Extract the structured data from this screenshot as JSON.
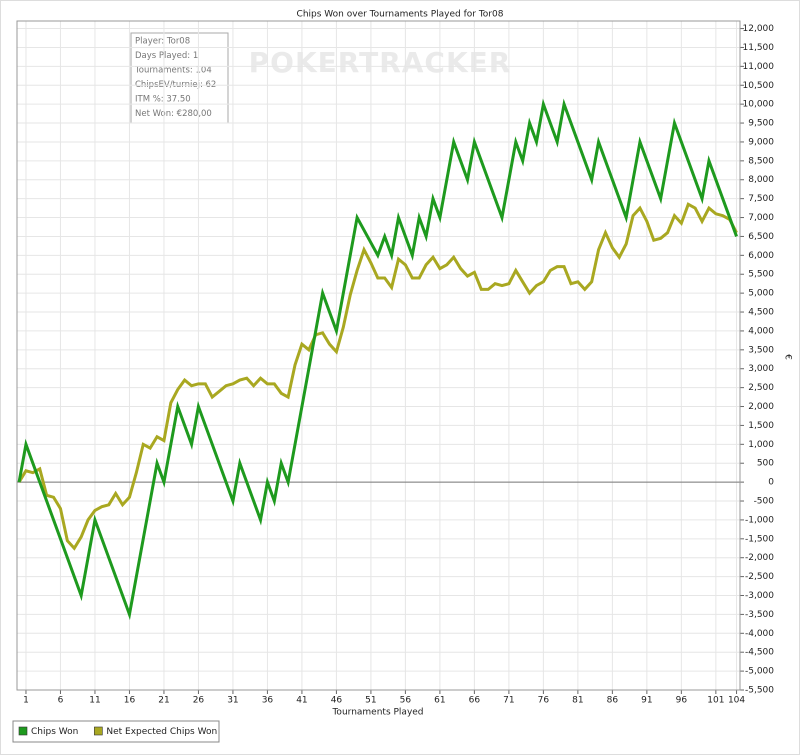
{
  "chart_data": {
    "type": "line",
    "title": "Chips Won over Tournaments Played for Tor08",
    "x_label": "Tournaments Played",
    "y_label": "€",
    "watermark": "POKERTRACKER",
    "tooltip": [
      "Player: Tor08",
      "Days Played: 1",
      "Tournaments: 104",
      "ChipsEV/turniej: 62",
      "ITM %: 37.50",
      "Net Won: €280,00"
    ],
    "xlim": [
      -0.3,
      104.5
    ],
    "xticks": [
      1,
      6,
      11,
      16,
      21,
      26,
      31,
      36,
      41,
      46,
      51,
      56,
      61,
      66,
      71,
      76,
      81,
      86,
      91,
      96,
      101,
      104
    ],
    "ylim": [
      -5500,
      12200
    ],
    "yticks": [
      {
        "value": -5500,
        "label": "-5,500"
      },
      {
        "value": -5000,
        "label": "-5,000"
      },
      {
        "value": -4500,
        "label": "-4,500"
      },
      {
        "value": -4000,
        "label": "-4,000"
      },
      {
        "value": -3500,
        "label": "-3,500"
      },
      {
        "value": -3000,
        "label": "-3,000"
      },
      {
        "value": -2500,
        "label": "-2,500"
      },
      {
        "value": -2000,
        "label": "-2,000"
      },
      {
        "value": -1500,
        "label": "-1,500"
      },
      {
        "value": -1000,
        "label": "-1,000"
      },
      -500,
      0,
      500,
      {
        "value": 1000,
        "label": "1,000"
      },
      {
        "value": 1500,
        "label": "1,500"
      },
      {
        "value": 2000,
        "label": "2,000"
      },
      {
        "value": 2500,
        "label": "2,500"
      },
      {
        "value": 3000,
        "label": "3,000"
      },
      {
        "value": 3500,
        "label": "3,500"
      },
      {
        "value": 4000,
        "label": "4,000"
      },
      {
        "value": 4500,
        "label": "4,500"
      },
      {
        "value": 5000,
        "label": "5,000"
      },
      {
        "value": 5500,
        "label": "5,500"
      },
      {
        "value": 6000,
        "label": "6,000"
      },
      {
        "value": 6500,
        "label": "6,500"
      },
      {
        "value": 7000,
        "label": "7,000"
      },
      {
        "value": 7500,
        "label": "7,500"
      },
      {
        "value": 8000,
        "label": "8,000"
      },
      {
        "value": 8500,
        "label": "8,500"
      },
      {
        "value": 9000,
        "label": "9,000"
      },
      {
        "value": 9500,
        "label": "9,500"
      },
      {
        "value": 10000,
        "label": "10,000"
      },
      {
        "value": 10500,
        "label": "10,500"
      },
      {
        "value": 11000,
        "label": "11,000"
      },
      {
        "value": 11500,
        "label": "11,500"
      },
      {
        "value": 12000,
        "label": "12,000"
      }
    ],
    "grid": true,
    "series": [
      {
        "name": "Chips Won",
        "color": "#1e9a1e",
        "x": [
          0,
          1,
          9,
          11,
          16,
          20,
          21,
          23,
          25,
          26,
          31,
          32,
          35,
          36,
          37,
          38,
          39,
          44,
          46,
          49,
          52,
          53,
          54,
          55,
          57,
          58,
          59,
          60,
          61,
          63,
          65,
          66,
          70,
          72,
          73,
          74,
          75,
          76,
          78,
          79,
          83,
          84,
          88,
          90,
          93,
          95,
          99,
          100,
          104
        ],
        "values": [
          0,
          1000,
          -3000,
          -1000,
          -3500,
          500,
          0,
          2000,
          1000,
          2000,
          -500,
          500,
          -1000,
          0,
          -500,
          500,
          0,
          5000,
          4000,
          7000,
          6000,
          6500,
          6000,
          7000,
          6000,
          7000,
          6500,
          7500,
          7000,
          9000,
          8000,
          9000,
          7000,
          9000,
          8500,
          9500,
          9000,
          10000,
          9000,
          10000,
          8000,
          9000,
          7000,
          9000,
          7500,
          9500,
          7500,
          8500,
          6500
        ]
      },
      {
        "name": "Net Expected Chips Won",
        "color": "#a9a821",
        "x": [
          0,
          1,
          2,
          3,
          4,
          5,
          6,
          7,
          8,
          9,
          10,
          11,
          12,
          13,
          14,
          15,
          16,
          17,
          18,
          19,
          20,
          21,
          22,
          23,
          24,
          25,
          26,
          27,
          28,
          29,
          30,
          31,
          32,
          33,
          34,
          35,
          36,
          37,
          38,
          39,
          40,
          41,
          42,
          43,
          44,
          45,
          46,
          47,
          48,
          49,
          50,
          51,
          52,
          53,
          54,
          55,
          56,
          57,
          58,
          59,
          60,
          61,
          62,
          63,
          64,
          65,
          66,
          67,
          68,
          69,
          70,
          71,
          72,
          73,
          74,
          75,
          76,
          77,
          78,
          79,
          80,
          81,
          82,
          83,
          84,
          85,
          86,
          87,
          88,
          89,
          90,
          91,
          92,
          93,
          94,
          95,
          96,
          97,
          98,
          99,
          100,
          101,
          102,
          103,
          104
        ],
        "values": [
          0,
          300,
          250,
          350,
          -350,
          -400,
          -700,
          -1550,
          -1750,
          -1450,
          -1000,
          -750,
          -650,
          -600,
          -300,
          -600,
          -400,
          250,
          1000,
          900,
          1200,
          1100,
          2100,
          2450,
          2700,
          2550,
          2600,
          2600,
          2250,
          2400,
          2550,
          2600,
          2700,
          2750,
          2550,
          2750,
          2600,
          2600,
          2350,
          2250,
          3100,
          3650,
          3500,
          3900,
          3950,
          3650,
          3450,
          4100,
          4950,
          5600,
          6150,
          5800,
          5400,
          5400,
          5150,
          5900,
          5750,
          5400,
          5400,
          5750,
          5950,
          5650,
          5750,
          5950,
          5650,
          5450,
          5550,
          5100,
          5100,
          5250,
          5200,
          5250,
          5600,
          5300,
          5000,
          5200,
          5300,
          5600,
          5700,
          5700,
          5250,
          5300,
          5100,
          5300,
          6150,
          6600,
          6200,
          5950,
          6300,
          7050,
          7250,
          6900,
          6400,
          6450,
          6600,
          7050,
          6850,
          7350,
          7250,
          6900,
          7250,
          7100,
          7050,
          6950,
          6600
        ]
      }
    ]
  }
}
